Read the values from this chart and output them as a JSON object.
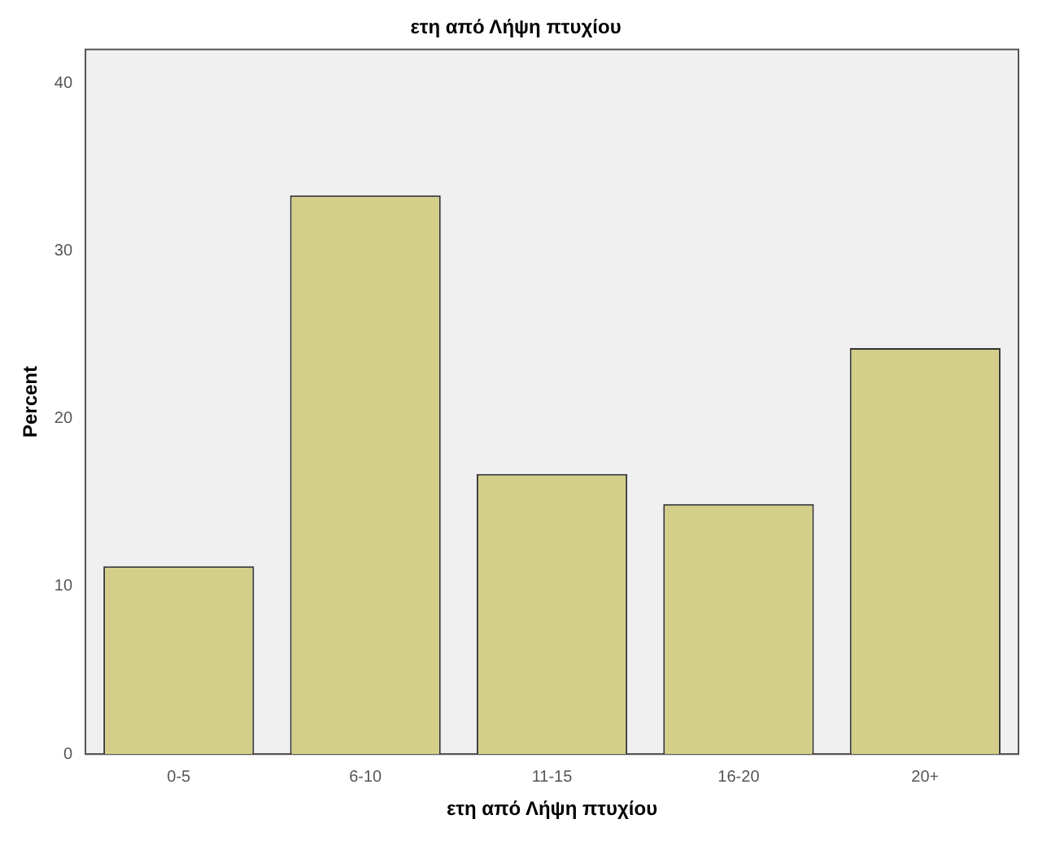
{
  "chart_data": {
    "type": "bar",
    "title": "ετη από Λήψη πτυχίου",
    "xlabel": "ετη από Λήψη πτυχίου",
    "ylabel": "Percent",
    "categories": [
      "0-5",
      "6-10",
      "11-15",
      "16-20",
      "20+"
    ],
    "values": [
      11.2,
      33.3,
      16.7,
      14.9,
      24.2
    ],
    "color": "#d3cf8a",
    "ylim": [
      0,
      42
    ],
    "yticks": [
      0,
      10,
      20,
      30,
      40
    ],
    "grid": false,
    "legend": false
  }
}
